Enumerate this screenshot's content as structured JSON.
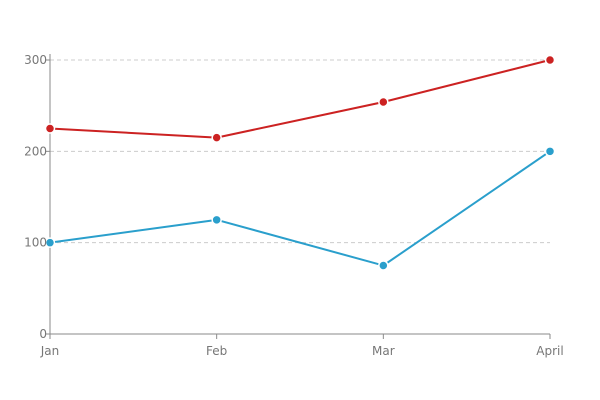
{
  "chart_data": {
    "type": "line",
    "title": "",
    "xlabel": "",
    "ylabel": "",
    "categories": [
      "Jan",
      "Feb",
      "Mar",
      "April"
    ],
    "ylim": [
      0,
      300
    ],
    "yticks": [
      0,
      100,
      200,
      300
    ],
    "grid": true,
    "legend": "none",
    "series": [
      {
        "values": [
          225,
          215,
          254,
          300
        ],
        "color": "#cc2222"
      },
      {
        "values": [
          100,
          125,
          75,
          200
        ],
        "color": "#2a9fcc"
      }
    ]
  }
}
